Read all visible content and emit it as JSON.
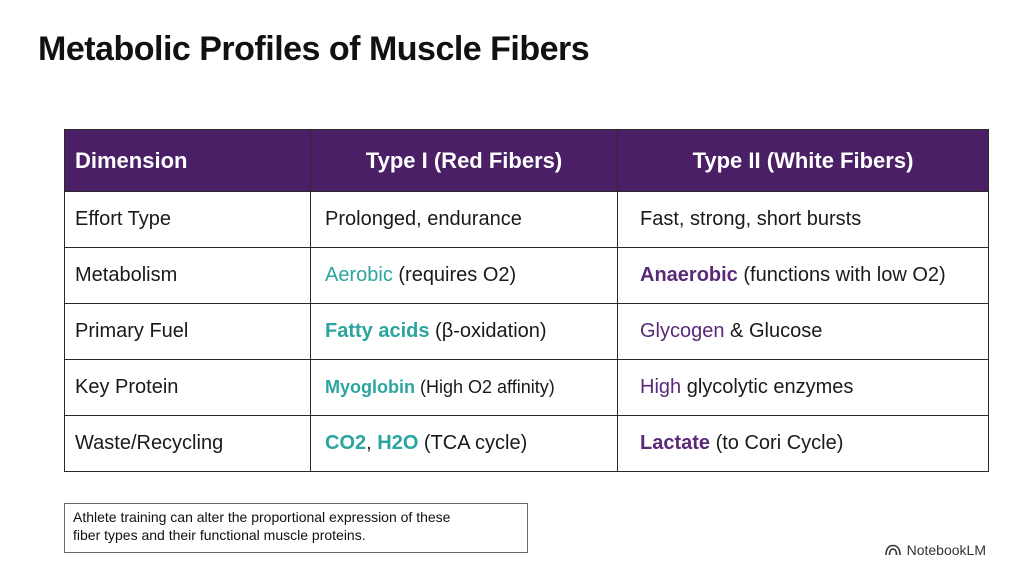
{
  "title": "Metabolic Profiles of Muscle Fibers",
  "table": {
    "headers": [
      "Dimension",
      "Type I (Red Fibers)",
      "Type II (White Fibers)"
    ],
    "rows": [
      {
        "dimension": "Effort Type",
        "type1": {
          "lead": "",
          "rest": "Prolonged, endurance"
        },
        "type2": {
          "lead": "",
          "rest": "Fast, strong, short bursts"
        }
      },
      {
        "dimension": "Metabolism",
        "type1": {
          "lead": "Aerobic",
          "rest": " (requires O2)"
        },
        "type2": {
          "lead": "Anaerobic",
          "rest": " (functions with low O2)"
        }
      },
      {
        "dimension": "Primary Fuel",
        "type1": {
          "lead": "Fatty acids",
          "rest": " (β-oxidation)"
        },
        "type2": {
          "lead": "Glycogen",
          "rest": " & Glucose"
        }
      },
      {
        "dimension": "Key Protein",
        "type1": {
          "lead": "Myoglobin",
          "rest": " (High O2 affinity)"
        },
        "type2": {
          "lead": "High",
          "rest": " glycolytic enzymes"
        }
      },
      {
        "dimension": "Waste/Recycling",
        "type1": {
          "lead": "CO2",
          "sep": ", ",
          "lead2": "H2O",
          "rest": " (TCA cycle)"
        },
        "type2": {
          "lead": "Lactate",
          "rest": " (to Cori Cycle)"
        }
      }
    ]
  },
  "note": {
    "line1": "Athlete training can alter the proportional expression of these",
    "line2": "fiber types and their functional muscle proteins."
  },
  "brand": {
    "label": "NotebookLM",
    "icon": "notebooklm-logo-icon"
  },
  "colors": {
    "header_bg": "#4a1f66",
    "teal": "#2ba59f",
    "purple": "#5a2a78"
  }
}
